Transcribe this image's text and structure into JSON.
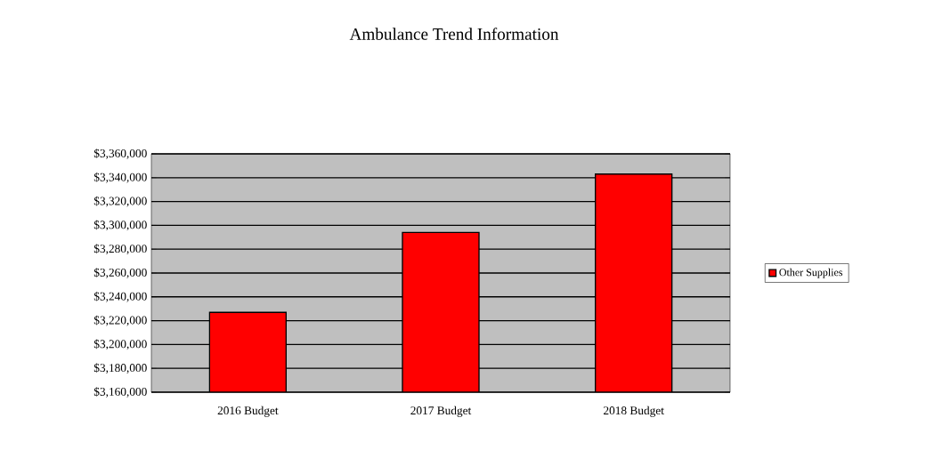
{
  "chart_data": {
    "type": "bar",
    "title": "Ambulance Trend Information",
    "categories": [
      "2016 Budget",
      "2017 Budget",
      "2018 Budget"
    ],
    "series": [
      {
        "name": "Other Supplies",
        "color": "#ff0000",
        "values": [
          3227000,
          3294000,
          3343000
        ]
      }
    ],
    "ylim": [
      3160000,
      3360000
    ],
    "yticks": [
      {
        "value": 3160000,
        "label": "$3,160,000"
      },
      {
        "value": 3180000,
        "label": "$3,180,000"
      },
      {
        "value": 3200000,
        "label": "$3,200,000"
      },
      {
        "value": 3220000,
        "label": "$3,220,000"
      },
      {
        "value": 3240000,
        "label": "$3,240,000"
      },
      {
        "value": 3260000,
        "label": "$3,260,000"
      },
      {
        "value": 3280000,
        "label": "$3,280,000"
      },
      {
        "value": 3300000,
        "label": "$3,300,000"
      },
      {
        "value": 3320000,
        "label": "$3,320,000"
      },
      {
        "value": 3340000,
        "label": "$3,340,000"
      },
      {
        "value": 3360000,
        "label": "$3,360,000"
      }
    ],
    "grid": "y",
    "legend": "right"
  }
}
